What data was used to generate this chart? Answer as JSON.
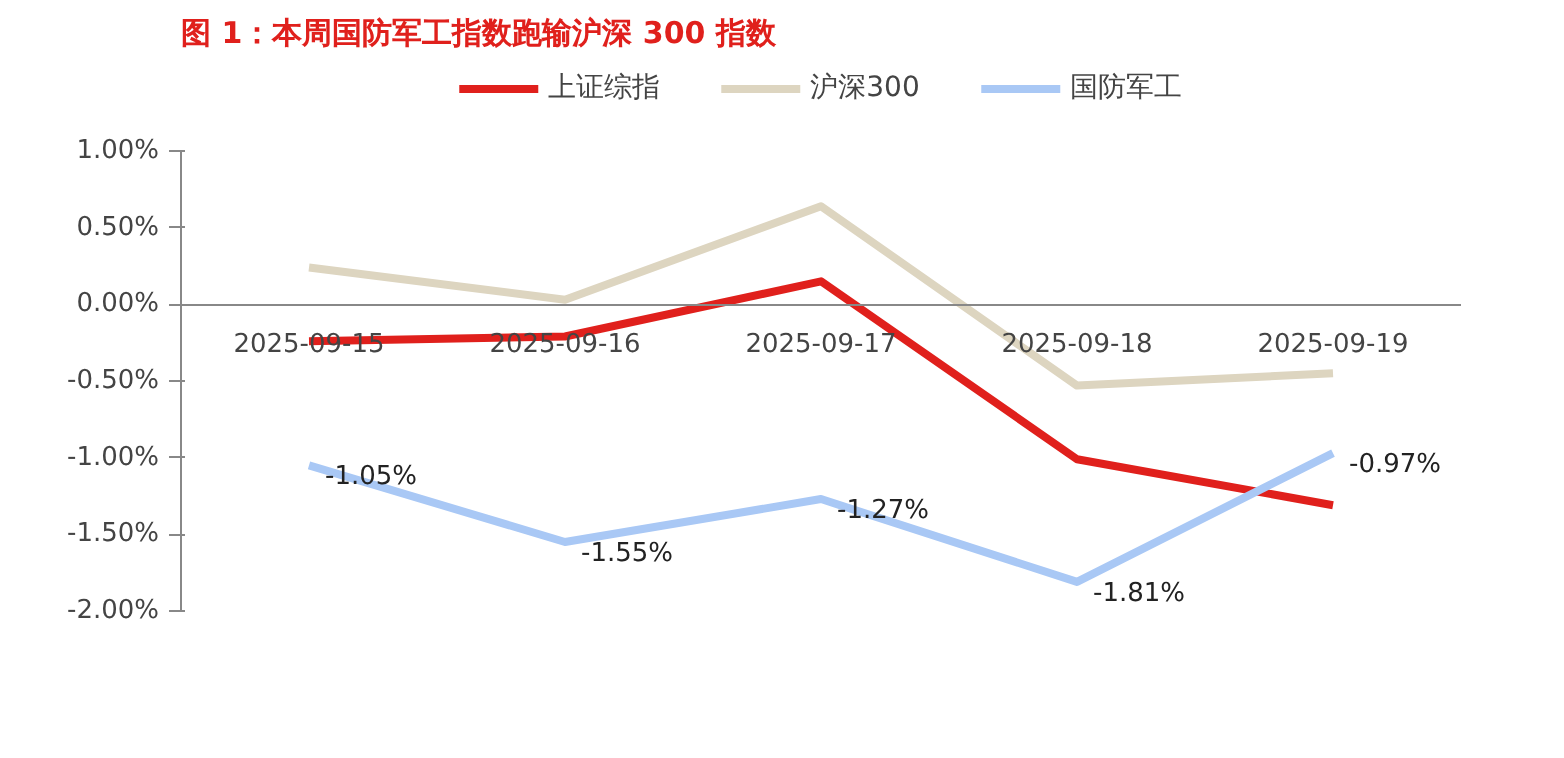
{
  "chart_data": {
    "type": "line",
    "title": "图 1：本周国防军工指数跑输沪深 300 指数",
    "categories": [
      "2025-09-15",
      "2025-09-16",
      "2025-09-17",
      "2025-09-18",
      "2025-09-19"
    ],
    "series": [
      {
        "name": "上证综指",
        "color": "#e0201c",
        "values": [
          -0.24,
          -0.21,
          0.15,
          -1.01,
          -1.31
        ]
      },
      {
        "name": "沪深300",
        "color": "#ddd5c0",
        "values": [
          0.24,
          0.03,
          0.64,
          -0.53,
          -0.45
        ]
      },
      {
        "name": "国防军工",
        "color": "#a9c8f5",
        "values": [
          -1.05,
          -1.55,
          -1.27,
          -1.81,
          -0.97
        ],
        "value_labels": [
          "-1.05%",
          "-1.55%",
          "-1.27%",
          "-1.81%",
          "-0.97%"
        ]
      }
    ],
    "ylim": [
      -2,
      1
    ],
    "yticks": [
      {
        "value": -2,
        "label": "-2.00%"
      },
      {
        "value": -1.5,
        "label": "-1.50%"
      },
      {
        "value": -1,
        "label": "-1.00%"
      },
      {
        "value": -0.5,
        "label": "-0.50%"
      },
      {
        "value": 0,
        "label": "0.00%"
      },
      {
        "value": 0.5,
        "label": "0.50%"
      },
      {
        "value": 1,
        "label": "1.00%"
      }
    ],
    "legend": "top",
    "grid": false,
    "marker": "none",
    "line_style": "solid"
  }
}
